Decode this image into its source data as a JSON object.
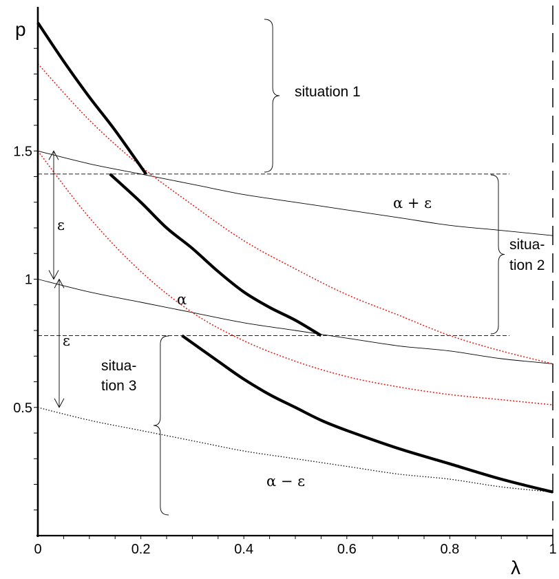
{
  "chart_data": {
    "type": "line",
    "xlabel": "λ",
    "ylabel": "p",
    "xlim": [
      0,
      1
    ],
    "ylim": [
      0,
      2
    ],
    "x_ticks": [
      {
        "value": 0,
        "label": "0"
      },
      {
        "value": 0.2,
        "label": "0.2"
      },
      {
        "value": 0.4,
        "label": "0.4"
      },
      {
        "value": 0.6,
        "label": "0.6"
      },
      {
        "value": 0.8,
        "label": "0.8"
      },
      {
        "value": 1,
        "label": "1"
      }
    ],
    "y_ticks": [
      {
        "value": 0.5,
        "label": "0.5"
      },
      {
        "value": 1,
        "label": "1"
      },
      {
        "value": 1.5,
        "label": "1.5"
      }
    ],
    "grid": false,
    "legend": "none",
    "series": [
      {
        "style": "black-thin",
        "x": [
          0,
          0.1,
          0.2,
          0.3,
          0.4,
          0.5,
          0.6,
          0.7,
          0.8,
          0.9,
          1
        ],
        "y": [
          1.5,
          1.45,
          1.41,
          1.37,
          1.33,
          1.3,
          1.27,
          1.24,
          1.21,
          1.19,
          1.17
        ]
      },
      {
        "style": "black-thin",
        "x": [
          0,
          0.1,
          0.2,
          0.3,
          0.4,
          0.5,
          0.6,
          0.7,
          0.8,
          0.9,
          1
        ],
        "y": [
          1.0,
          0.95,
          0.91,
          0.87,
          0.83,
          0.8,
          0.77,
          0.74,
          0.72,
          0.69,
          0.67
        ]
      },
      {
        "style": "black-dotted",
        "x": [
          0,
          0.1,
          0.2,
          0.3,
          0.4,
          0.5,
          0.6,
          0.7,
          0.8,
          0.9,
          1
        ],
        "y": [
          0.5,
          0.45,
          0.41,
          0.37,
          0.33,
          0.3,
          0.27,
          0.24,
          0.22,
          0.19,
          0.17
        ]
      },
      {
        "style": "red-dotted",
        "x": [
          0,
          0.1,
          0.2,
          0.3,
          0.4,
          0.5,
          0.6,
          0.7,
          0.8,
          0.9,
          1
        ],
        "y": [
          1.84,
          1.62,
          1.44,
          1.29,
          1.15,
          1.04,
          0.94,
          0.86,
          0.78,
          0.72,
          0.67
        ]
      },
      {
        "style": "red-dotted",
        "x": [
          0,
          0.1,
          0.2,
          0.3,
          0.4,
          0.5,
          0.6,
          0.7,
          0.8,
          0.9,
          1
        ],
        "y": [
          1.5,
          1.24,
          1.03,
          0.87,
          0.76,
          0.68,
          0.62,
          0.58,
          0.55,
          0.53,
          0.51
        ]
      },
      {
        "style": "black-bold",
        "x": [
          0,
          0.05,
          0.1,
          0.15,
          0.21
        ],
        "y": [
          2.0,
          1.85,
          1.71,
          1.58,
          1.41
        ]
      },
      {
        "style": "black-bold",
        "x": [
          0.14,
          0.2,
          0.25,
          0.3,
          0.35,
          0.4,
          0.45,
          0.5,
          0.55
        ],
        "y": [
          1.41,
          1.3,
          1.2,
          1.12,
          1.03,
          0.95,
          0.89,
          0.84,
          0.78
        ]
      },
      {
        "style": "black-bold",
        "x": [
          0.28,
          0.35,
          0.4,
          0.45,
          0.5,
          0.55,
          0.6,
          0.7,
          0.8,
          0.9,
          1
        ],
        "y": [
          0.78,
          0.68,
          0.61,
          0.55,
          0.5,
          0.45,
          0.41,
          0.34,
          0.28,
          0.22,
          0.17
        ]
      }
    ],
    "reference_lines": [
      {
        "orientation": "horizontal",
        "y": 1.41,
        "style": "dashed"
      },
      {
        "orientation": "horizontal",
        "y": 0.78,
        "style": "dashed"
      },
      {
        "orientation": "vertical",
        "x": 1,
        "style": "long-dash"
      }
    ],
    "annotations": [
      {
        "text": "situation 1"
      },
      {
        "text": "situa-",
        "text2": "tion 2"
      },
      {
        "text": "situa-",
        "text2": "tion 3"
      },
      {
        "text": "α + ε"
      },
      {
        "text": "α"
      },
      {
        "text": "α − ε"
      },
      {
        "text": "ε"
      },
      {
        "text": "ε"
      }
    ]
  }
}
